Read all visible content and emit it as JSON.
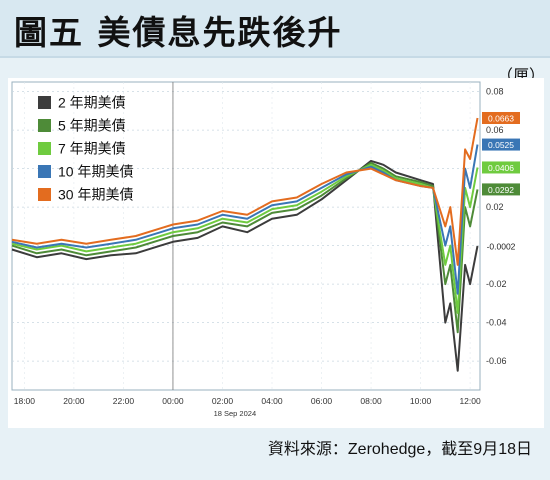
{
  "header": {
    "title": "圖五 美債息先跌後升",
    "unit": "（厘）"
  },
  "footer": {
    "source": "資料來源：Zerohedge，截至9月18日"
  },
  "chart_data": {
    "type": "line",
    "title": "圖五 美債息先跌後升",
    "ylabel": "（厘）",
    "x_ticks": [
      "18:00",
      "20:00",
      "22:00",
      "00:00",
      "02:00",
      "04:00",
      "06:00",
      "08:00",
      "10:00",
      "12:00"
    ],
    "x_sublabel": "18 Sep 2024",
    "y_ticks": [
      "0.08",
      "0.06",
      "0.04",
      "0.02",
      "0",
      "-0.02",
      "-0.04",
      "-0.06"
    ],
    "ylim": [
      -0.075,
      0.085
    ],
    "xlim": [
      17.5,
      36.4
    ],
    "legend": {
      "placement": "top-left",
      "entries": [
        "2 年期美債",
        "5 年期美債",
        "7 年期美債",
        "10 年期美債",
        "30 年期美債"
      ]
    },
    "end_labels": [
      "0.0663",
      "0.0525",
      "0.0406",
      "0.0292",
      "-0.0002"
    ],
    "series": [
      {
        "name": "2 年期美債",
        "color": "#3c3c3c",
        "end_label": "-0.0002",
        "points": [
          [
            17.5,
            -0.002
          ],
          [
            18.5,
            -0.006
          ],
          [
            19.5,
            -0.004
          ],
          [
            20.5,
            -0.007
          ],
          [
            21.5,
            -0.005
          ],
          [
            22.5,
            -0.004
          ],
          [
            23.5,
            0.0
          ],
          [
            24,
            0.002
          ],
          [
            25,
            0.004
          ],
          [
            26,
            0.01
          ],
          [
            27,
            0.007
          ],
          [
            28,
            0.014
          ],
          [
            29,
            0.016
          ],
          [
            30,
            0.024
          ],
          [
            31,
            0.034
          ],
          [
            32,
            0.044
          ],
          [
            32.5,
            0.042
          ],
          [
            33,
            0.038
          ],
          [
            34,
            0.034
          ],
          [
            34.5,
            0.032
          ],
          [
            35,
            -0.04
          ],
          [
            35.2,
            -0.03
          ],
          [
            35.5,
            -0.065
          ],
          [
            35.8,
            -0.01
          ],
          [
            36,
            -0.02
          ],
          [
            36.3,
            -0.0002
          ]
        ]
      },
      {
        "name": "5 年期美債",
        "color": "#4e8b38",
        "end_label": "0.0292",
        "points": [
          [
            17.5,
            0.0
          ],
          [
            18.5,
            -0.004
          ],
          [
            19.5,
            -0.002
          ],
          [
            20.5,
            -0.005
          ],
          [
            21.5,
            -0.003
          ],
          [
            22.5,
            -0.001
          ],
          [
            23.5,
            0.003
          ],
          [
            24,
            0.005
          ],
          [
            25,
            0.007
          ],
          [
            26,
            0.012
          ],
          [
            27,
            0.01
          ],
          [
            28,
            0.017
          ],
          [
            29,
            0.019
          ],
          [
            30,
            0.026
          ],
          [
            31,
            0.035
          ],
          [
            32,
            0.043
          ],
          [
            32.5,
            0.04
          ],
          [
            33,
            0.036
          ],
          [
            34,
            0.033
          ],
          [
            34.5,
            0.031
          ],
          [
            35,
            -0.02
          ],
          [
            35.2,
            -0.01
          ],
          [
            35.5,
            -0.045
          ],
          [
            35.8,
            0.02
          ],
          [
            36,
            0.01
          ],
          [
            36.3,
            0.0292
          ]
        ]
      },
      {
        "name": "7 年期美債",
        "color": "#6fcb3f",
        "end_label": "0.0406",
        "points": [
          [
            17.5,
            0.001
          ],
          [
            18.5,
            -0.002
          ],
          [
            19.5,
            0.0
          ],
          [
            20.5,
            -0.003
          ],
          [
            21.5,
            -0.001
          ],
          [
            22.5,
            0.001
          ],
          [
            23.5,
            0.005
          ],
          [
            24,
            0.007
          ],
          [
            25,
            0.009
          ],
          [
            26,
            0.014
          ],
          [
            27,
            0.012
          ],
          [
            28,
            0.019
          ],
          [
            29,
            0.021
          ],
          [
            30,
            0.028
          ],
          [
            31,
            0.036
          ],
          [
            32,
            0.042
          ],
          [
            32.5,
            0.039
          ],
          [
            33,
            0.035
          ],
          [
            34,
            0.032
          ],
          [
            34.5,
            0.03
          ],
          [
            35,
            -0.01
          ],
          [
            35.2,
            0.0
          ],
          [
            35.5,
            -0.035
          ],
          [
            35.8,
            0.03
          ],
          [
            36,
            0.02
          ],
          [
            36.3,
            0.0406
          ]
        ]
      },
      {
        "name": "10 年期美債",
        "color": "#3a76b5",
        "end_label": "0.0525",
        "points": [
          [
            17.5,
            0.002
          ],
          [
            18.5,
            -0.001
          ],
          [
            19.5,
            0.001
          ],
          [
            20.5,
            -0.001
          ],
          [
            21.5,
            0.001
          ],
          [
            22.5,
            0.003
          ],
          [
            23.5,
            0.007
          ],
          [
            24,
            0.009
          ],
          [
            25,
            0.011
          ],
          [
            26,
            0.016
          ],
          [
            27,
            0.014
          ],
          [
            28,
            0.021
          ],
          [
            29,
            0.023
          ],
          [
            30,
            0.03
          ],
          [
            31,
            0.037
          ],
          [
            32,
            0.041
          ],
          [
            32.5,
            0.038
          ],
          [
            33,
            0.034
          ],
          [
            34,
            0.031
          ],
          [
            34.5,
            0.03
          ],
          [
            35,
            0.0
          ],
          [
            35.2,
            0.01
          ],
          [
            35.5,
            -0.025
          ],
          [
            35.8,
            0.04
          ],
          [
            36,
            0.03
          ],
          [
            36.3,
            0.0525
          ]
        ]
      },
      {
        "name": "30 年期美債",
        "color": "#e36c1f",
        "end_label": "0.0663",
        "points": [
          [
            17.5,
            0.003
          ],
          [
            18.5,
            0.001
          ],
          [
            19.5,
            0.003
          ],
          [
            20.5,
            0.001
          ],
          [
            21.5,
            0.003
          ],
          [
            22.5,
            0.005
          ],
          [
            23.5,
            0.009
          ],
          [
            24,
            0.011
          ],
          [
            25,
            0.013
          ],
          [
            26,
            0.018
          ],
          [
            27,
            0.016
          ],
          [
            28,
            0.023
          ],
          [
            29,
            0.025
          ],
          [
            30,
            0.032
          ],
          [
            31,
            0.038
          ],
          [
            32,
            0.04
          ],
          [
            32.5,
            0.037
          ],
          [
            33,
            0.034
          ],
          [
            34,
            0.031
          ],
          [
            34.5,
            0.03
          ],
          [
            35,
            0.01
          ],
          [
            35.2,
            0.02
          ],
          [
            35.5,
            -0.01
          ],
          [
            35.8,
            0.05
          ],
          [
            36,
            0.045
          ],
          [
            36.3,
            0.0663
          ]
        ]
      }
    ]
  }
}
